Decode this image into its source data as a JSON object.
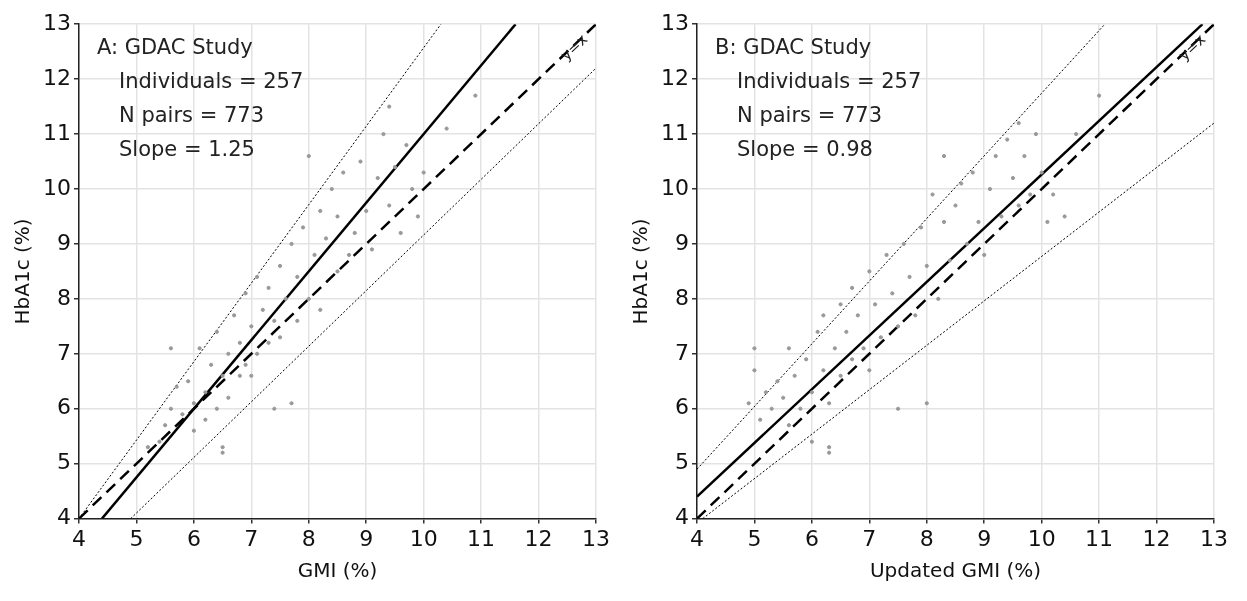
{
  "chart_data": [
    {
      "type": "scatter",
      "xlabel": "GMI (%)",
      "ylabel": "HbA1c (%)",
      "xlim": [
        4,
        13
      ],
      "ylim": [
        4,
        13
      ],
      "xticks": [
        4,
        5,
        6,
        7,
        8,
        9,
        10,
        11,
        12,
        13
      ],
      "yticks": [
        4,
        5,
        6,
        7,
        8,
        9,
        10,
        11,
        12,
        13
      ],
      "grid": true,
      "legend": false,
      "annotations": [
        "A: GDAC Study",
        "Individuals = 257",
        "N pairs = 773",
        "Slope = 1.25",
        {
          "text": "y=x",
          "x": 12.6,
          "y": 12.6
        }
      ],
      "series": [
        {
          "marker": "circle",
          "color": "#999999",
          "x": [
            5.4,
            5.5,
            5.6,
            5.6,
            5.7,
            5.8,
            5.9,
            6.0,
            6.0,
            6.1,
            6.2,
            6.2,
            6.3,
            6.4,
            6.4,
            6.5,
            6.5,
            6.6,
            6.6,
            6.7,
            6.8,
            6.8,
            6.9,
            6.9,
            7.0,
            7.0,
            7.1,
            7.1,
            7.2,
            7.3,
            7.3,
            7.4,
            7.4,
            7.5,
            7.5,
            7.6,
            7.7,
            7.7,
            7.8,
            7.8,
            7.9,
            8.0,
            8.0,
            8.1,
            8.2,
            8.2,
            8.3,
            8.4,
            8.5,
            8.5,
            8.6,
            8.7,
            8.8,
            8.9,
            9.0,
            9.1,
            9.2,
            9.3,
            9.4,
            9.4,
            9.5,
            9.6,
            9.7,
            9.8,
            9.9,
            10.0,
            10.4,
            10.9,
            5.2,
            6.5
          ],
          "values": [
            5.4,
            5.7,
            6.0,
            7.1,
            6.4,
            5.9,
            6.5,
            6.1,
            5.6,
            7.1,
            6.3,
            5.8,
            6.8,
            6.0,
            7.4,
            5.3,
            6.6,
            7.0,
            6.2,
            7.7,
            6.6,
            7.2,
            8.1,
            6.8,
            7.5,
            6.6,
            8.4,
            7.0,
            7.8,
            7.2,
            8.2,
            6.0,
            7.6,
            8.6,
            7.3,
            8.0,
            9.0,
            6.1,
            7.6,
            8.4,
            9.3,
            8.0,
            10.6,
            8.8,
            9.6,
            7.8,
            9.1,
            10.0,
            8.5,
            9.5,
            10.3,
            8.8,
            9.2,
            10.5,
            9.6,
            8.9,
            10.2,
            11.0,
            11.5,
            9.7,
            10.4,
            9.2,
            10.8,
            10.0,
            9.5,
            10.3,
            11.1,
            11.7,
            5.3,
            5.2
          ]
        },
        {
          "type": "line",
          "color": "#000000",
          "line_style": "solid",
          "x": [
            4.4,
            11.6
          ],
          "values": [
            4,
            13
          ]
        },
        {
          "type": "line",
          "color": "#000000",
          "line_style": "dashed",
          "x": [
            4,
            13
          ],
          "values": [
            4,
            13
          ]
        },
        {
          "type": "line",
          "color": "#000000",
          "line_style": "dotted",
          "x": [
            4,
            10.3
          ],
          "values": [
            4,
            13
          ]
        },
        {
          "type": "line",
          "color": "#000000",
          "line_style": "dotted",
          "x": [
            4.9,
            13
          ],
          "values": [
            4,
            12.2
          ]
        }
      ]
    },
    {
      "type": "scatter",
      "xlabel": "Updated GMI (%)",
      "ylabel": "HbA1c (%)",
      "xlim": [
        4,
        13
      ],
      "ylim": [
        4,
        13
      ],
      "xticks": [
        4,
        5,
        6,
        7,
        8,
        9,
        10,
        11,
        12,
        13
      ],
      "yticks": [
        4,
        5,
        6,
        7,
        8,
        9,
        10,
        11,
        12,
        13
      ],
      "grid": true,
      "legend": false,
      "annotations": [
        "B: GDAC Study",
        "Individuals = 257",
        "N pairs = 773",
        "Slope = 0.98",
        {
          "text": "y=x",
          "x": 12.6,
          "y": 12.6
        }
      ],
      "series": [
        {
          "marker": "circle",
          "color": "#999999",
          "x": [
            4.9,
            5.0,
            5.0,
            5.1,
            5.2,
            5.3,
            5.4,
            5.5,
            5.6,
            5.6,
            5.7,
            5.8,
            5.9,
            6.0,
            6.0,
            6.1,
            6.2,
            6.2,
            6.3,
            6.3,
            6.4,
            6.5,
            6.5,
            6.6,
            6.7,
            6.7,
            6.8,
            6.9,
            7.0,
            7.0,
            7.1,
            7.2,
            7.3,
            7.4,
            7.5,
            7.5,
            7.6,
            7.7,
            7.8,
            7.9,
            8.0,
            8.0,
            8.1,
            8.2,
            8.3,
            8.3,
            8.4,
            8.5,
            8.6,
            8.7,
            8.8,
            8.9,
            9.0,
            9.1,
            9.2,
            9.3,
            9.4,
            9.5,
            9.6,
            9.6,
            9.7,
            9.8,
            9.9,
            10.0,
            10.1,
            10.2,
            10.4,
            10.6,
            11.0,
            6.3
          ],
          "values": [
            6.1,
            6.7,
            7.1,
            5.8,
            6.3,
            6.0,
            6.5,
            6.2,
            7.1,
            5.7,
            6.6,
            6.0,
            6.9,
            6.3,
            5.4,
            7.4,
            6.7,
            7.7,
            5.3,
            6.1,
            7.1,
            7.9,
            6.6,
            7.4,
            8.2,
            6.9,
            7.7,
            7.1,
            8.5,
            6.7,
            7.9,
            7.3,
            8.8,
            8.1,
            7.5,
            6.0,
            9.0,
            8.4,
            7.7,
            9.3,
            8.6,
            6.1,
            9.9,
            8.0,
            9.4,
            10.6,
            8.7,
            9.7,
            10.1,
            9.0,
            10.3,
            9.4,
            8.8,
            10.0,
            10.6,
            9.5,
            10.9,
            10.2,
            11.2,
            9.7,
            10.6,
            9.9,
            11.0,
            10.3,
            9.4,
            9.9,
            9.5,
            11.0,
            11.7,
            5.2
          ]
        },
        {
          "type": "line",
          "color": "#000000",
          "line_style": "solid",
          "x": [
            4,
            12.8
          ],
          "values": [
            4.4,
            13
          ]
        },
        {
          "type": "line",
          "color": "#000000",
          "line_style": "dashed",
          "x": [
            4,
            13
          ],
          "values": [
            4,
            13
          ]
        },
        {
          "type": "line",
          "color": "#000000",
          "line_style": "dotted",
          "x": [
            4,
            11.1
          ],
          "values": [
            4.9,
            13
          ]
        },
        {
          "type": "line",
          "color": "#000000",
          "line_style": "dotted",
          "x": [
            4.1,
            13
          ],
          "values": [
            4,
            11.2
          ]
        }
      ]
    }
  ]
}
